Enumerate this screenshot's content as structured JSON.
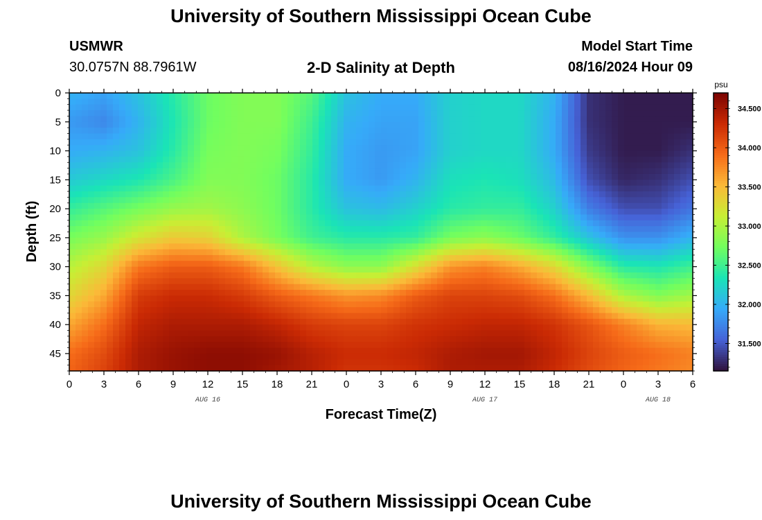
{
  "header": {
    "title": "University of Southern Mississippi Ocean Cube",
    "station_code": "USMWR",
    "station_coords": "30.0757N  88.7961W",
    "subtitle": "2-D Salinity at Depth",
    "model_start_label": "Model Start Time",
    "model_start_value": "08/16/2024 Hour 09"
  },
  "footer": {
    "title": "University of Southern Mississippi Ocean Cube"
  },
  "colors": {
    "colormap": [
      "#30123b",
      "#4662d7",
      "#36aaf9",
      "#1ae4b6",
      "#72fe5e",
      "#c7ef34",
      "#fbb938",
      "#f66b19",
      "#ca2a04",
      "#7a0403"
    ]
  },
  "chart_data": {
    "type": "heatmap",
    "title": "2-D Salinity at Depth",
    "xlabel": "Forecast Time(Z)",
    "ylabel": "Depth (ft)",
    "x_tick_labels": [
      "0",
      "3",
      "6",
      "9",
      "12",
      "15",
      "18",
      "21",
      "0",
      "3",
      "6",
      "9",
      "12",
      "15",
      "18",
      "21",
      "0",
      "3",
      "6"
    ],
    "x_range_hours_from_aug16_00z": [
      0,
      54
    ],
    "date_labels": [
      {
        "label": "AUG 16",
        "at_hour": 12
      },
      {
        "label": "AUG 17",
        "at_hour": 36
      },
      {
        "label": "AUG 18",
        "at_hour": 51
      }
    ],
    "y_ticks": [
      0,
      5,
      10,
      15,
      20,
      25,
      30,
      35,
      40,
      45
    ],
    "y_range": [
      0,
      48
    ],
    "y_inverted": true,
    "colorbar": {
      "unit": "psu",
      "range": [
        31.15,
        34.7
      ],
      "tick_labels": [
        "31.500",
        "32.000",
        "32.500",
        "33.000",
        "33.500",
        "34.000",
        "34.500"
      ],
      "tick_values": [
        31.5,
        32.0,
        32.5,
        33.0,
        33.5,
        34.0,
        34.5
      ]
    },
    "depths_ft": [
      0,
      5,
      10,
      15,
      20,
      25,
      30,
      35,
      40,
      45,
      48
    ],
    "times_hours": [
      0,
      3,
      6,
      9,
      12,
      15,
      18,
      21,
      24,
      27,
      30,
      33,
      36,
      39,
      42,
      45,
      48,
      51,
      54
    ],
    "salinity_psu": [
      [
        32.0,
        31.9,
        32.1,
        32.4,
        32.7,
        32.8,
        32.8,
        32.6,
        32.1,
        31.95,
        31.95,
        32.2,
        32.25,
        32.25,
        32.0,
        31.3,
        31.2,
        31.2,
        31.2
      ],
      [
        31.85,
        31.75,
        32.0,
        32.35,
        32.7,
        32.8,
        32.8,
        32.5,
        32.0,
        31.9,
        31.9,
        32.2,
        32.25,
        32.25,
        31.95,
        31.3,
        31.2,
        31.2,
        31.2
      ],
      [
        31.95,
        32.0,
        32.1,
        32.4,
        32.75,
        32.8,
        32.75,
        32.45,
        31.95,
        31.85,
        31.9,
        32.2,
        32.25,
        32.25,
        31.95,
        31.35,
        31.2,
        31.2,
        31.3
      ],
      [
        32.15,
        32.25,
        32.35,
        32.55,
        32.8,
        32.8,
        32.7,
        32.4,
        31.95,
        31.85,
        32.0,
        32.3,
        32.35,
        32.3,
        32.05,
        31.45,
        31.25,
        31.3,
        31.45
      ],
      [
        32.45,
        32.6,
        32.75,
        32.9,
        32.95,
        32.85,
        32.7,
        32.4,
        32.1,
        32.05,
        32.2,
        32.4,
        32.45,
        32.45,
        32.2,
        31.7,
        31.45,
        31.45,
        31.65
      ],
      [
        32.75,
        32.9,
        33.2,
        33.4,
        33.35,
        33.0,
        32.75,
        32.5,
        32.4,
        32.4,
        32.45,
        32.75,
        32.85,
        32.7,
        32.45,
        32.1,
        31.8,
        31.8,
        32.0
      ],
      [
        33.05,
        33.3,
        33.85,
        34.0,
        34.0,
        33.85,
        33.45,
        33.05,
        32.85,
        32.85,
        33.25,
        33.7,
        33.8,
        33.6,
        33.3,
        32.8,
        32.4,
        32.35,
        32.5
      ],
      [
        33.3,
        33.6,
        34.2,
        34.3,
        34.3,
        34.2,
        34.0,
        33.85,
        33.7,
        33.75,
        34.0,
        34.15,
        34.15,
        34.1,
        33.9,
        33.5,
        33.0,
        32.8,
        32.95
      ],
      [
        33.6,
        33.9,
        34.35,
        34.45,
        34.45,
        34.45,
        34.35,
        34.2,
        34.15,
        34.15,
        34.25,
        34.3,
        34.35,
        34.35,
        34.25,
        34.05,
        33.8,
        33.55,
        33.5
      ],
      [
        33.9,
        34.1,
        34.45,
        34.55,
        34.6,
        34.6,
        34.55,
        34.4,
        34.3,
        34.3,
        34.35,
        34.45,
        34.5,
        34.5,
        34.35,
        34.15,
        34.0,
        33.9,
        33.8
      ],
      [
        33.95,
        34.15,
        34.45,
        34.55,
        34.6,
        34.6,
        34.5,
        34.4,
        34.25,
        34.25,
        34.3,
        34.45,
        34.45,
        34.45,
        34.3,
        34.1,
        33.95,
        33.85,
        33.75
      ]
    ]
  }
}
